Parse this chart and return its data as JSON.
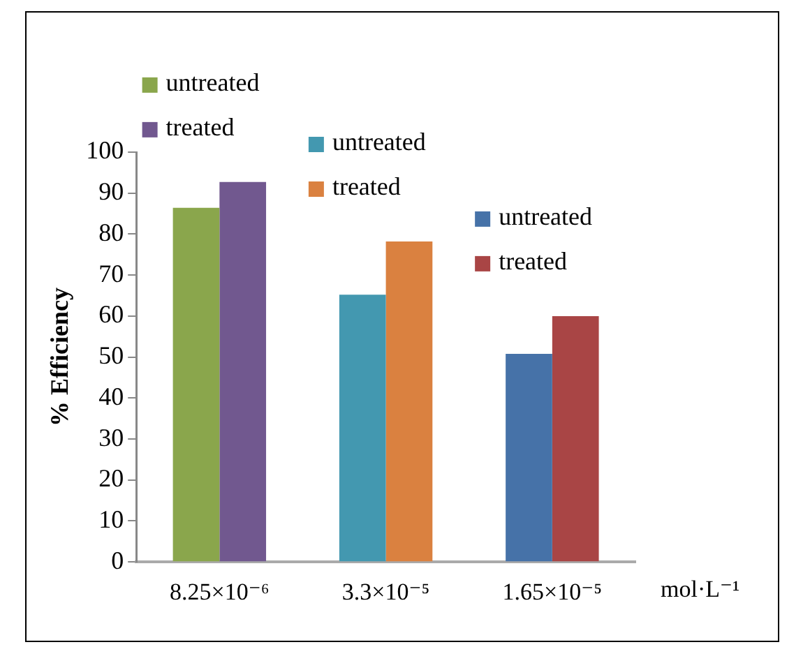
{
  "chart_data": {
    "type": "bar",
    "categories": [
      "8.25×10⁻⁶",
      "3.3×10⁻⁵",
      "1.65×10⁻⁵"
    ],
    "xlabel": "mol·L⁻¹",
    "ylabel": "% Efficiency",
    "ylim": [
      0,
      100
    ],
    "yticks": [
      0,
      10,
      20,
      30,
      40,
      50,
      60,
      70,
      80,
      90,
      100
    ],
    "grid": false,
    "legend": "top",
    "series": [
      {
        "name": "untreated",
        "color": "#8aa64c",
        "values": [
          86.4,
          null,
          null
        ]
      },
      {
        "name": "treated",
        "color": "#71588f",
        "values": [
          92.7,
          null,
          null
        ]
      },
      {
        "name": "untreated",
        "color": "#4398b0",
        "values": [
          null,
          65.2,
          null
        ]
      },
      {
        "name": "treated",
        "color": "#da8140",
        "values": [
          null,
          78.2,
          null
        ]
      },
      {
        "name": "untreated",
        "color": "#4672a8",
        "values": [
          null,
          null,
          50.8
        ]
      },
      {
        "name": "treated",
        "color": "#a94545",
        "values": [
          null,
          null,
          60
        ]
      }
    ]
  }
}
